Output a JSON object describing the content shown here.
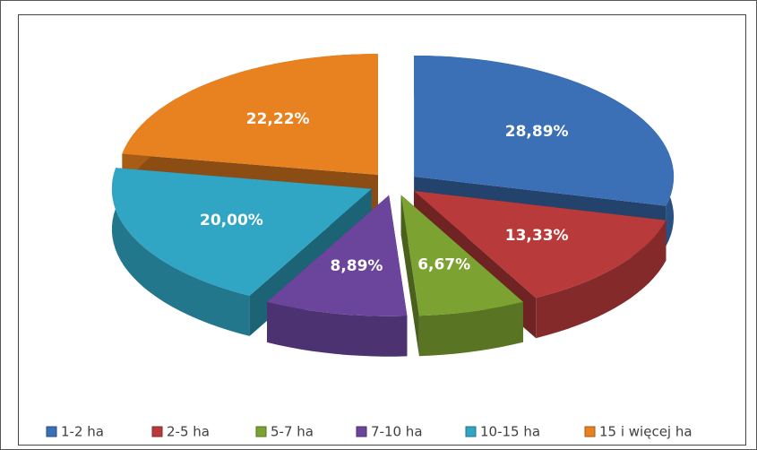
{
  "chart_data": {
    "type": "pie",
    "categories": [
      "1-2 ha",
      "2-5 ha",
      "5-7 ha",
      "7-10 ha",
      "10-15 ha",
      "15 i więcej ha"
    ],
    "values": [
      28.89,
      13.33,
      6.67,
      8.89,
      20.0,
      22.22
    ],
    "value_labels": [
      "28,89%",
      "13,33%",
      "6,67%",
      "8,89%",
      "20,00%",
      "22,22%"
    ],
    "colors": [
      "#3b6fb6",
      "#b93a3a",
      "#7ca232",
      "#6a459b",
      "#30a5c4",
      "#e8811f"
    ],
    "legend": "bottom"
  }
}
